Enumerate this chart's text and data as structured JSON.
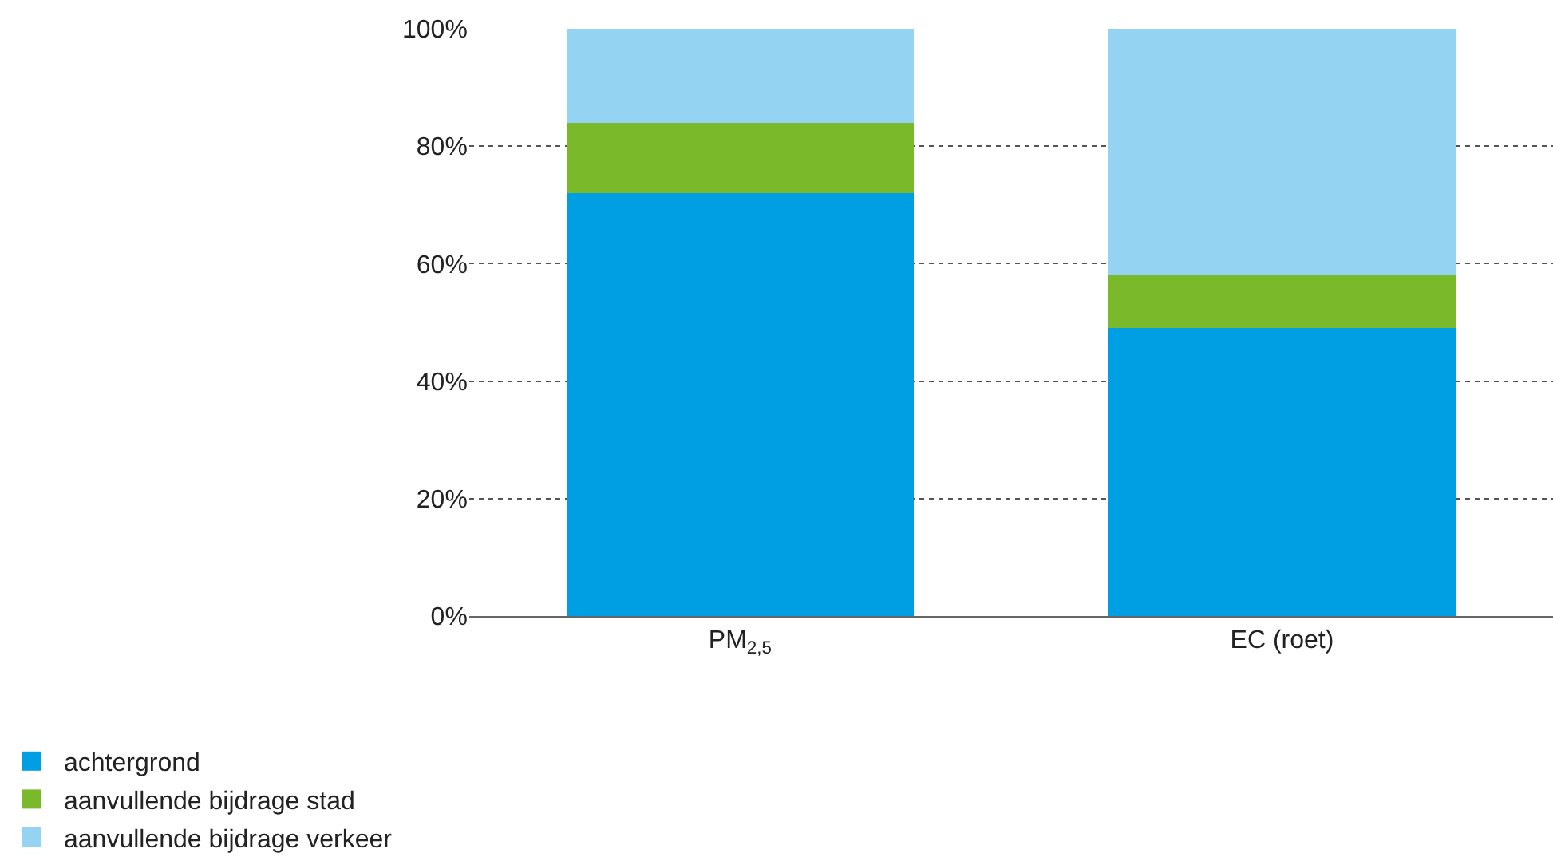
{
  "chart_data": {
    "type": "bar",
    "stacked": true,
    "categories": [
      "PM$_{2,5}$",
      "EC (roet)"
    ],
    "series": [
      {
        "name": "achtergrond",
        "color": "#009fe3",
        "values": [
          72,
          49
        ]
      },
      {
        "name": "aanvullende bijdrage stad",
        "color": "#7ab929",
        "values": [
          12,
          9
        ]
      },
      {
        "name": "aanvullende bijdrage verkeer",
        "color": "#95d3f3",
        "values": [
          16,
          42
        ]
      }
    ],
    "ylim": [
      0,
      100
    ],
    "yticks": [
      {
        "value": 0,
        "label": "0%"
      },
      {
        "value": 20,
        "label": "20%"
      },
      {
        "value": 40,
        "label": "40%"
      },
      {
        "value": 60,
        "label": "60%"
      },
      {
        "value": 80,
        "label": "80%"
      },
      {
        "value": 100,
        "label": "100%"
      }
    ],
    "grid": "y",
    "legend": "bottom left"
  }
}
